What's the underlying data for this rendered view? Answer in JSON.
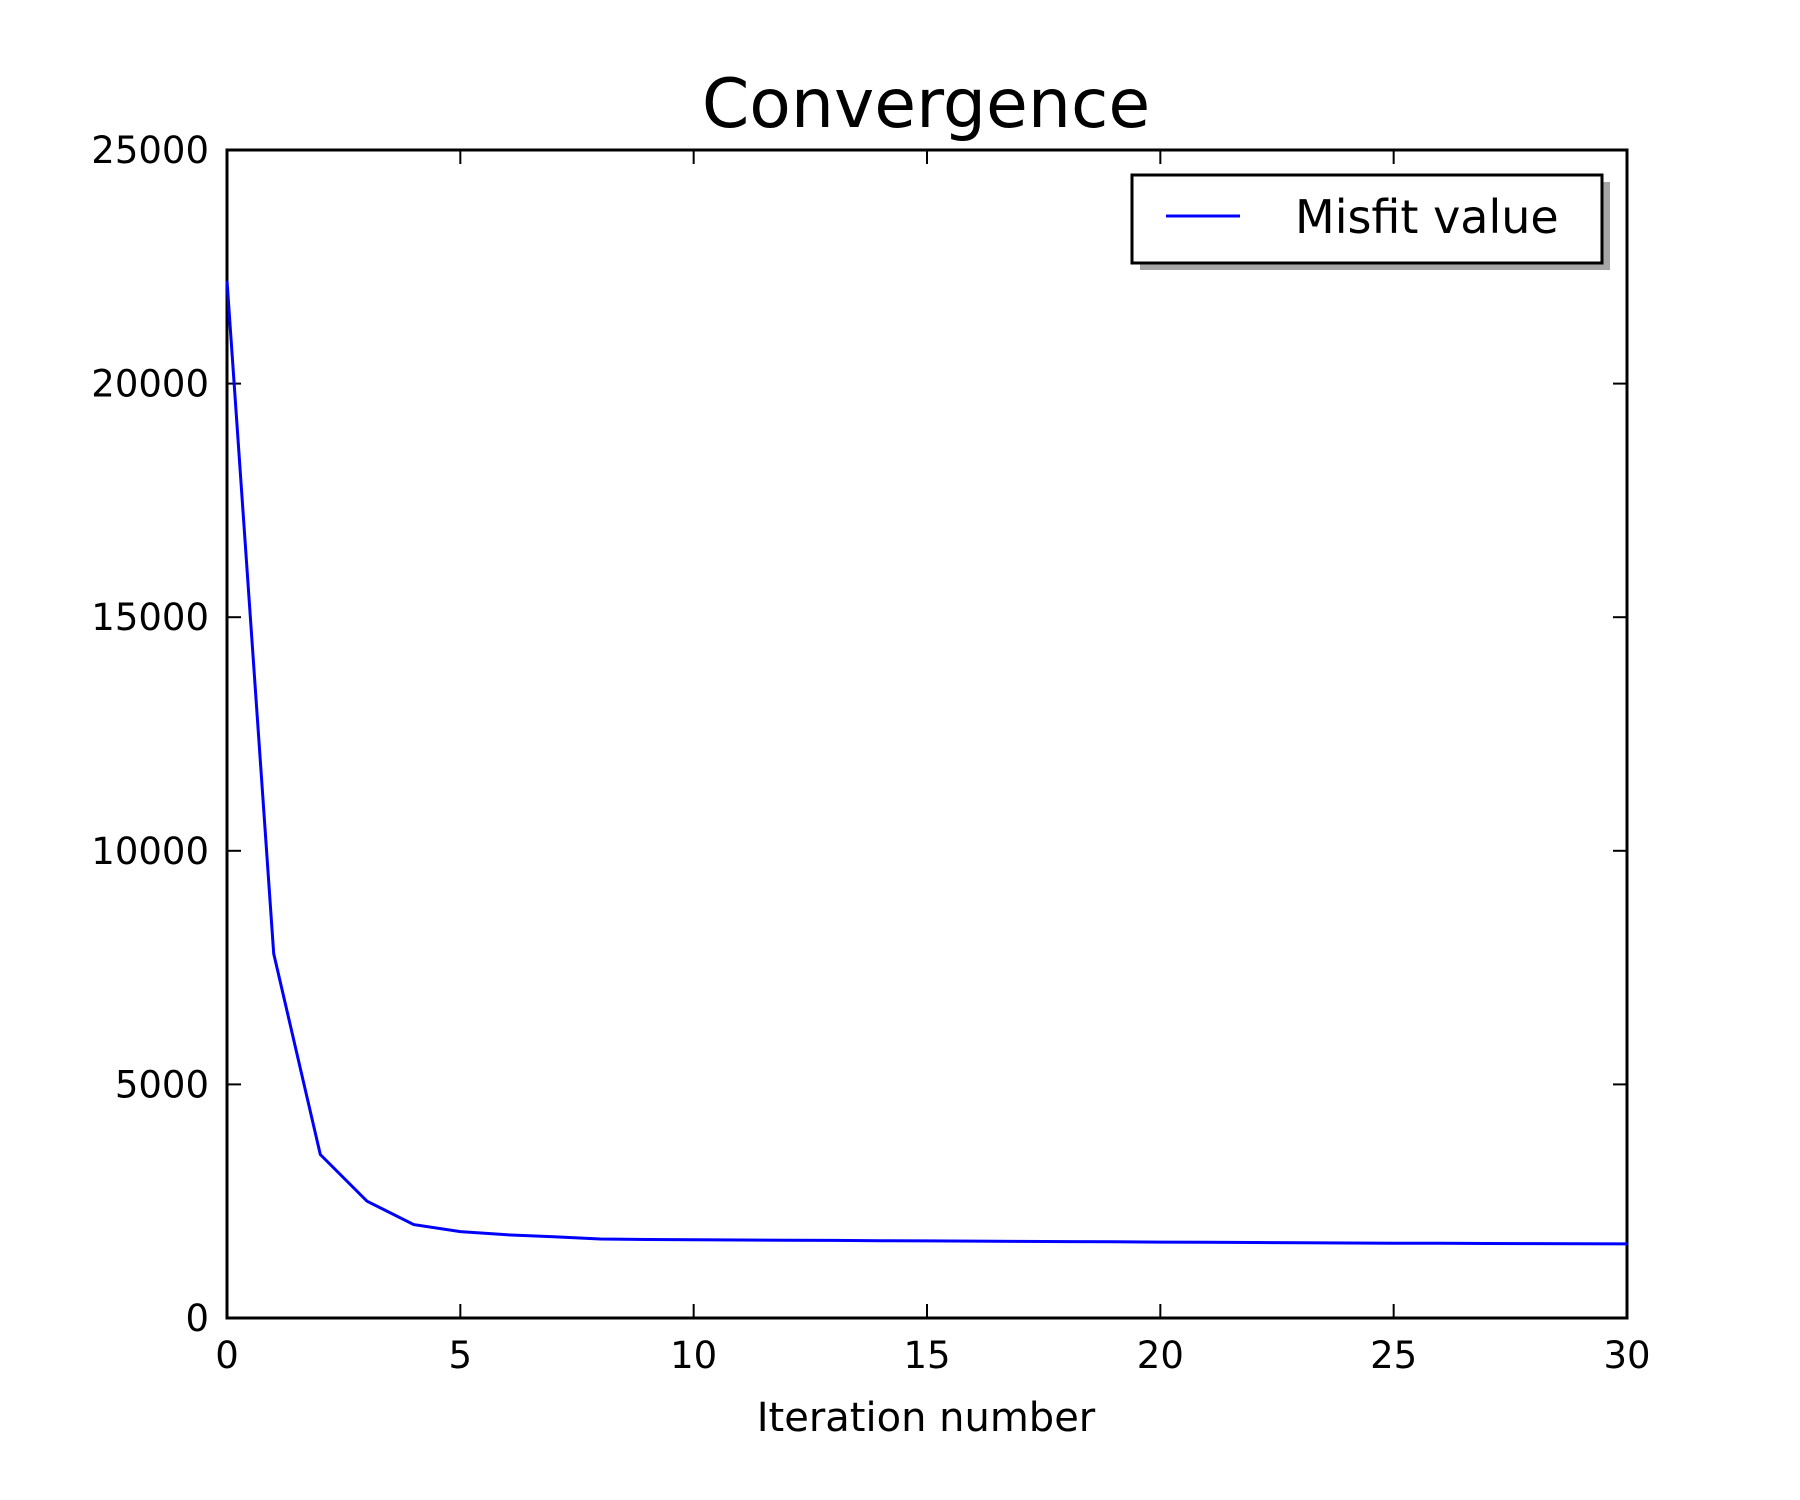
{
  "chart_data": {
    "type": "line",
    "title": "Convergence",
    "xlabel": "Iteration number",
    "ylabel": "",
    "xlim": [
      0,
      30
    ],
    "ylim": [
      0,
      25000
    ],
    "xticks": [
      0,
      5,
      10,
      15,
      20,
      25,
      30
    ],
    "xtick_labels": [
      "0",
      "5",
      "10",
      "15",
      "20",
      "25",
      "30"
    ],
    "yticks": [
      0,
      5000,
      10000,
      15000,
      20000,
      25000
    ],
    "ytick_labels": [
      "0",
      "5000",
      "10000",
      "15000",
      "20000",
      "25000"
    ],
    "grid": false,
    "legend_position": "top-right",
    "series": [
      {
        "name": "Misfit value",
        "color": "#0000ff",
        "x": [
          0,
          1,
          2,
          3,
          4,
          5,
          6,
          7,
          8,
          9,
          10,
          11,
          12,
          13,
          14,
          15,
          16,
          17,
          18,
          19,
          20,
          21,
          22,
          23,
          24,
          25,
          26,
          27,
          28,
          29,
          30
        ],
        "values": [
          22200,
          7800,
          3500,
          2500,
          2000,
          1850,
          1780,
          1740,
          1690,
          1680,
          1675,
          1670,
          1665,
          1660,
          1655,
          1650,
          1645,
          1640,
          1635,
          1630,
          1625,
          1620,
          1615,
          1610,
          1605,
          1600,
          1598,
          1595,
          1592,
          1590,
          1585
        ]
      }
    ]
  }
}
